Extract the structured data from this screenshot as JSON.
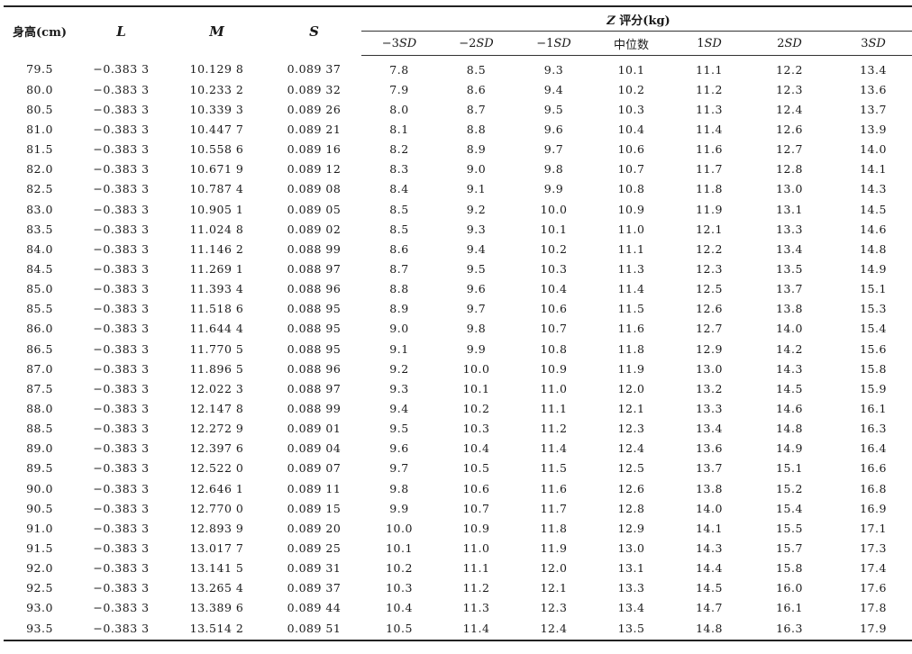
{
  "headers": {
    "height": "身高(cm)",
    "L": "L",
    "M": "M",
    "S": "S",
    "z_group_italic": "Z",
    "z_group_rest": " 评分(kg)",
    "sd_cols": [
      {
        "prefix": "−3",
        "suffix": "SD"
      },
      {
        "prefix": "−2",
        "suffix": "SD"
      },
      {
        "prefix": "−1",
        "suffix": "SD"
      },
      {
        "prefix": "中位数",
        "suffix": ""
      },
      {
        "prefix": "1",
        "suffix": "SD"
      },
      {
        "prefix": "2",
        "suffix": "SD"
      },
      {
        "prefix": "3",
        "suffix": "SD"
      }
    ]
  },
  "rows": [
    [
      "79.5",
      "−0.383 3",
      "10.129 8",
      "0.089 37",
      "7.8",
      "8.5",
      "9.3",
      "10.1",
      "11.1",
      "12.2",
      "13.4"
    ],
    [
      "80.0",
      "−0.383 3",
      "10.233 2",
      "0.089 32",
      "7.9",
      "8.6",
      "9.4",
      "10.2",
      "11.2",
      "12.3",
      "13.6"
    ],
    [
      "80.5",
      "−0.383 3",
      "10.339 3",
      "0.089 26",
      "8.0",
      "8.7",
      "9.5",
      "10.3",
      "11.3",
      "12.4",
      "13.7"
    ],
    [
      "81.0",
      "−0.383 3",
      "10.447 7",
      "0.089 21",
      "8.1",
      "8.8",
      "9.6",
      "10.4",
      "11.4",
      "12.6",
      "13.9"
    ],
    [
      "81.5",
      "−0.383 3",
      "10.558 6",
      "0.089 16",
      "8.2",
      "8.9",
      "9.7",
      "10.6",
      "11.6",
      "12.7",
      "14.0"
    ],
    [
      "82.0",
      "−0.383 3",
      "10.671 9",
      "0.089 12",
      "8.3",
      "9.0",
      "9.8",
      "10.7",
      "11.7",
      "12.8",
      "14.1"
    ],
    [
      "82.5",
      "−0.383 3",
      "10.787 4",
      "0.089 08",
      "8.4",
      "9.1",
      "9.9",
      "10.8",
      "11.8",
      "13.0",
      "14.3"
    ],
    [
      "83.0",
      "−0.383 3",
      "10.905 1",
      "0.089 05",
      "8.5",
      "9.2",
      "10.0",
      "10.9",
      "11.9",
      "13.1",
      "14.5"
    ],
    [
      "83.5",
      "−0.383 3",
      "11.024 8",
      "0.089 02",
      "8.5",
      "9.3",
      "10.1",
      "11.0",
      "12.1",
      "13.3",
      "14.6"
    ],
    [
      "84.0",
      "−0.383 3",
      "11.146 2",
      "0.088 99",
      "8.6",
      "9.4",
      "10.2",
      "11.1",
      "12.2",
      "13.4",
      "14.8"
    ],
    [
      "84.5",
      "−0.383 3",
      "11.269 1",
      "0.088 97",
      "8.7",
      "9.5",
      "10.3",
      "11.3",
      "12.3",
      "13.5",
      "14.9"
    ],
    [
      "85.0",
      "−0.383 3",
      "11.393 4",
      "0.088 96",
      "8.8",
      "9.6",
      "10.4",
      "11.4",
      "12.5",
      "13.7",
      "15.1"
    ],
    [
      "85.5",
      "−0.383 3",
      "11.518 6",
      "0.088 95",
      "8.9",
      "9.7",
      "10.6",
      "11.5",
      "12.6",
      "13.8",
      "15.3"
    ],
    [
      "86.0",
      "−0.383 3",
      "11.644 4",
      "0.088 95",
      "9.0",
      "9.8",
      "10.7",
      "11.6",
      "12.7",
      "14.0",
      "15.4"
    ],
    [
      "86.5",
      "−0.383 3",
      "11.770 5",
      "0.088 95",
      "9.1",
      "9.9",
      "10.8",
      "11.8",
      "12.9",
      "14.2",
      "15.6"
    ],
    [
      "87.0",
      "−0.383 3",
      "11.896 5",
      "0.088 96",
      "9.2",
      "10.0",
      "10.9",
      "11.9",
      "13.0",
      "14.3",
      "15.8"
    ],
    [
      "87.5",
      "−0.383 3",
      "12.022 3",
      "0.088 97",
      "9.3",
      "10.1",
      "11.0",
      "12.0",
      "13.2",
      "14.5",
      "15.9"
    ],
    [
      "88.0",
      "−0.383 3",
      "12.147 8",
      "0.088 99",
      "9.4",
      "10.2",
      "11.1",
      "12.1",
      "13.3",
      "14.6",
      "16.1"
    ],
    [
      "88.5",
      "−0.383 3",
      "12.272 9",
      "0.089 01",
      "9.5",
      "10.3",
      "11.2",
      "12.3",
      "13.4",
      "14.8",
      "16.3"
    ],
    [
      "89.0",
      "−0.383 3",
      "12.397 6",
      "0.089 04",
      "9.6",
      "10.4",
      "11.4",
      "12.4",
      "13.6",
      "14.9",
      "16.4"
    ],
    [
      "89.5",
      "−0.383 3",
      "12.522 0",
      "0.089 07",
      "9.7",
      "10.5",
      "11.5",
      "12.5",
      "13.7",
      "15.1",
      "16.6"
    ],
    [
      "90.0",
      "−0.383 3",
      "12.646 1",
      "0.089 11",
      "9.8",
      "10.6",
      "11.6",
      "12.6",
      "13.8",
      "15.2",
      "16.8"
    ],
    [
      "90.5",
      "−0.383 3",
      "12.770 0",
      "0.089 15",
      "9.9",
      "10.7",
      "11.7",
      "12.8",
      "14.0",
      "15.4",
      "16.9"
    ],
    [
      "91.0",
      "−0.383 3",
      "12.893 9",
      "0.089 20",
      "10.0",
      "10.9",
      "11.8",
      "12.9",
      "14.1",
      "15.5",
      "17.1"
    ],
    [
      "91.5",
      "−0.383 3",
      "13.017 7",
      "0.089 25",
      "10.1",
      "11.0",
      "11.9",
      "13.0",
      "14.3",
      "15.7",
      "17.3"
    ],
    [
      "92.0",
      "−0.383 3",
      "13.141 5",
      "0.089 31",
      "10.2",
      "11.1",
      "12.0",
      "13.1",
      "14.4",
      "15.8",
      "17.4"
    ],
    [
      "92.5",
      "−0.383 3",
      "13.265 4",
      "0.089 37",
      "10.3",
      "11.2",
      "12.1",
      "13.3",
      "14.5",
      "16.0",
      "17.6"
    ],
    [
      "93.0",
      "−0.383 3",
      "13.389 6",
      "0.089 44",
      "10.4",
      "11.3",
      "12.3",
      "13.4",
      "14.7",
      "16.1",
      "17.8"
    ],
    [
      "93.5",
      "−0.383 3",
      "13.514 2",
      "0.089 51",
      "10.5",
      "11.4",
      "12.4",
      "13.5",
      "14.8",
      "16.3",
      "17.9"
    ]
  ]
}
